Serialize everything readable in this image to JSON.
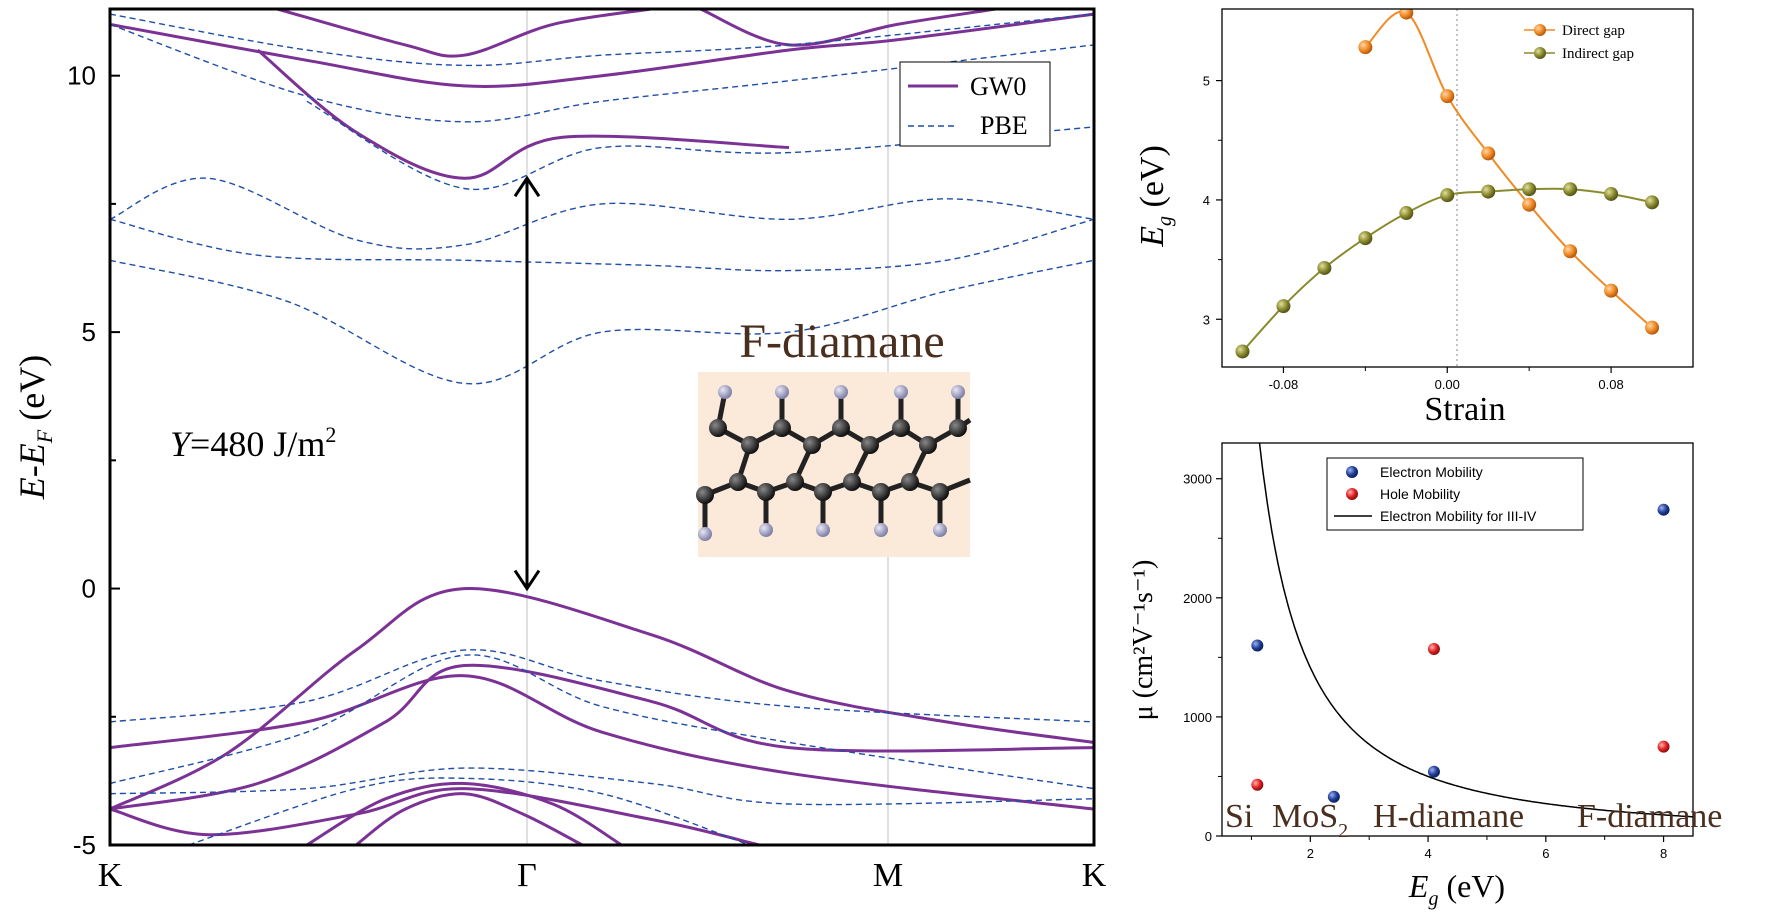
{
  "chart_data": [
    {
      "type": "line",
      "xlabel": "",
      "ylabel_main": "E-E",
      "ylabel_sub": "F",
      "ylabel_unit": " (eV)",
      "ylim": [
        -5,
        11.3
      ],
      "yticks": [
        "-5",
        "0",
        "5",
        "10"
      ],
      "kpoints": [
        "K",
        "Γ",
        "M",
        "K"
      ],
      "legend": [
        "GW0",
        "PBE"
      ],
      "colors": {
        "GW0": "#7B3294",
        "PBE": "#1F4EA8"
      },
      "annotation_youngs_prefix": "Y",
      "annotation_youngs_value": "=480 J/m",
      "annotation_youngs_sup": "2",
      "material_label": "F-diamane",
      "arrow_from": 0,
      "arrow_to": 8.0,
      "series": [
        {
          "name": "GW0",
          "values": [
            [
              0,
              -4.3
            ],
            [
              0.12,
              -3.2
            ],
            [
              0.25,
              -1.2
            ],
            [
              0.36,
              0
            ],
            [
              0.55,
              -0.9
            ],
            [
              0.69,
              -2.0
            ],
            [
              0.85,
              -2.6
            ],
            [
              1.0,
              -3.0
            ]
          ]
        },
        {
          "name": "GW0",
          "values": [
            [
              0,
              -4.3
            ],
            [
              0.15,
              -3.8
            ],
            [
              0.28,
              -2.6
            ],
            [
              0.36,
              -1.5
            ],
            [
              0.55,
              -2.2
            ],
            [
              0.69,
              -3.1
            ],
            [
              1.0,
              -3.1
            ]
          ]
        },
        {
          "name": "GW0",
          "values": [
            [
              0,
              -4.3
            ],
            [
              0.1,
              -4.8
            ],
            [
              0.25,
              -4.4
            ],
            [
              0.36,
              -3.9
            ],
            [
              0.55,
              -4.5
            ],
            [
              0.66,
              -5.0
            ]
          ]
        },
        {
          "name": "GW0",
          "values": [
            [
              0.2,
              -5.0
            ],
            [
              0.28,
              -4.1
            ],
            [
              0.36,
              -3.8
            ],
            [
              0.45,
              -4.2
            ],
            [
              0.52,
              -5.0
            ]
          ]
        },
        {
          "name": "GW0",
          "values": [
            [
              0.25,
              -5.0
            ],
            [
              0.3,
              -4.3
            ],
            [
              0.36,
              -4.0
            ],
            [
              0.42,
              -4.4
            ],
            [
              0.48,
              -5.0
            ]
          ]
        },
        {
          "name": "GW0",
          "values": [
            [
              0,
              -3.1
            ],
            [
              0.2,
              -2.6
            ],
            [
              0.36,
              -1.7
            ],
            [
              0.5,
              -2.8
            ],
            [
              0.69,
              -3.6
            ],
            [
              1.0,
              -4.3
            ]
          ]
        },
        {
          "name": "GW0",
          "values": [
            [
              0.15,
              10.5
            ],
            [
              0.25,
              8.9
            ],
            [
              0.36,
              8.0
            ],
            [
              0.46,
              8.8
            ],
            [
              0.69,
              8.6
            ]
          ]
        },
        {
          "name": "GW0",
          "values": [
            [
              0,
              11.0
            ],
            [
              0.2,
              10.3
            ],
            [
              0.36,
              9.8
            ],
            [
              0.5,
              10.0
            ],
            [
              0.69,
              10.5
            ],
            [
              0.8,
              10.7
            ],
            [
              1.0,
              11.2
            ]
          ]
        },
        {
          "name": "GW0",
          "values": [
            [
              0.17,
              11.3
            ],
            [
              0.3,
              10.6
            ],
            [
              0.36,
              10.4
            ],
            [
              0.45,
              11.0
            ],
            [
              0.55,
              11.3
            ]
          ]
        },
        {
          "name": "GW0",
          "values": [
            [
              0.6,
              11.3
            ],
            [
              0.69,
              10.6
            ],
            [
              0.8,
              11.0
            ],
            [
              0.9,
              11.3
            ]
          ]
        },
        {
          "name": "PBE",
          "values": [
            [
              0,
              -2.6
            ],
            [
              0.2,
              -2.2
            ],
            [
              0.36,
              -1.2
            ],
            [
              0.5,
              -1.8
            ],
            [
              0.69,
              -2.3
            ],
            [
              1.0,
              -2.6
            ]
          ]
        },
        {
          "name": "PBE",
          "values": [
            [
              0,
              -3.8
            ],
            [
              0.2,
              -2.8
            ],
            [
              0.36,
              -1.3
            ],
            [
              0.5,
              -2.3
            ],
            [
              0.69,
              -3.0
            ],
            [
              1.0,
              -3.9
            ]
          ]
        },
        {
          "name": "PBE",
          "values": [
            [
              0,
              -4.0
            ],
            [
              0.2,
              -3.9
            ],
            [
              0.36,
              -3.5
            ],
            [
              0.55,
              -3.8
            ],
            [
              0.69,
              -4.2
            ],
            [
              1.0,
              -4.1
            ]
          ]
        },
        {
          "name": "PBE",
          "values": [
            [
              0.08,
              -5.0
            ],
            [
              0.25,
              -3.9
            ],
            [
              0.36,
              -3.7
            ],
            [
              0.5,
              -4.0
            ],
            [
              0.65,
              -5.0
            ]
          ]
        },
        {
          "name": "PBE",
          "values": [
            [
              0,
              7.2
            ],
            [
              0.1,
              8.0
            ],
            [
              0.25,
              6.8
            ],
            [
              0.36,
              6.7
            ],
            [
              0.5,
              7.5
            ],
            [
              0.69,
              7.2
            ],
            [
              0.85,
              7.6
            ],
            [
              1.0,
              7.2
            ]
          ]
        },
        {
          "name": "PBE",
          "values": [
            [
              0,
              7.2
            ],
            [
              0.15,
              6.5
            ],
            [
              0.36,
              6.4
            ],
            [
              0.55,
              6.3
            ],
            [
              0.69,
              6.2
            ],
            [
              0.85,
              6.4
            ],
            [
              1.0,
              7.2
            ]
          ]
        },
        {
          "name": "PBE",
          "values": [
            [
              0,
              6.4
            ],
            [
              0.18,
              5.6
            ],
            [
              0.36,
              4.0
            ],
            [
              0.5,
              5.0
            ],
            [
              0.69,
              5.0
            ],
            [
              0.85,
              5.8
            ],
            [
              1.0,
              6.4
            ]
          ]
        },
        {
          "name": "PBE",
          "values": [
            [
              0.2,
              9.5
            ],
            [
              0.36,
              7.8
            ],
            [
              0.5,
              8.6
            ],
            [
              0.69,
              8.5
            ],
            [
              1.0,
              9.0
            ]
          ]
        },
        {
          "name": "PBE",
          "values": [
            [
              0,
              11.0
            ],
            [
              0.2,
              9.6
            ],
            [
              0.36,
              9.1
            ],
            [
              0.5,
              9.5
            ],
            [
              0.69,
              9.9
            ],
            [
              1.0,
              10.6
            ]
          ]
        },
        {
          "name": "PBE",
          "values": [
            [
              0,
              11.2
            ],
            [
              0.2,
              10.5
            ],
            [
              0.36,
              10.2
            ],
            [
              0.5,
              10.4
            ],
            [
              0.69,
              10.6
            ],
            [
              1.0,
              11.2
            ]
          ]
        }
      ]
    },
    {
      "type": "line",
      "xlabel": "Strain",
      "ylabel_main": "E",
      "ylabel_sub": "g",
      "ylabel_unit": " (eV)",
      "xlim": [
        -0.11,
        0.12
      ],
      "ylim": [
        2.6,
        5.6
      ],
      "xticks": [
        "-0.08",
        "0.00",
        "0.08"
      ],
      "yticks": [
        "3",
        "4",
        "5"
      ],
      "legend_position": "top-right",
      "series": [
        {
          "name": "Direct gap",
          "color": "#F08A24",
          "x": [
            -0.04,
            -0.02,
            0.0,
            0.02,
            0.04,
            0.06,
            0.08,
            0.1
          ],
          "values": [
            5.28,
            5.57,
            4.87,
            4.39,
            3.96,
            3.57,
            3.24,
            2.93
          ]
        },
        {
          "name": "Indirect gap",
          "color": "#8A8A2E",
          "x": [
            -0.1,
            -0.08,
            -0.06,
            -0.04,
            -0.02,
            0.0,
            0.02,
            0.04,
            0.06,
            0.08,
            0.1
          ],
          "values": [
            2.73,
            3.11,
            3.43,
            3.68,
            3.89,
            4.04,
            4.07,
            4.09,
            4.09,
            4.05,
            3.98
          ]
        }
      ]
    },
    {
      "type": "scatter",
      "xlabel_main": "E",
      "xlabel_sub": "g",
      "xlabel_unit": " (eV)",
      "ylabel": "μ (cm²V⁻¹s⁻¹)",
      "xlim": [
        0.5,
        8.5
      ],
      "ylim": [
        0,
        3300
      ],
      "xticks": [
        "2",
        "4",
        "6",
        "8"
      ],
      "yticks": [
        "0",
        "1000",
        "2000",
        "3000"
      ],
      "legend_position": "top-left",
      "materials": [
        "Si",
        "MoS",
        "H-diamane",
        "F-diamane"
      ],
      "mos2_sub": "2",
      "series": [
        {
          "name": "Electron Mobility",
          "color": "#1F3F99",
          "x": [
            1.1,
            2.4,
            4.1,
            8.0
          ],
          "values": [
            1600,
            330,
            540,
            2740
          ]
        },
        {
          "name": "Hole Mobility",
          "color": "#E02020",
          "x": [
            1.1,
            4.1,
            8.0
          ],
          "values": [
            430,
            1570,
            750
          ]
        },
        {
          "name": "Electron Mobility for III-IV",
          "color": "#000000",
          "formula": "mu = 4000 / Eg^1.5"
        }
      ]
    }
  ]
}
